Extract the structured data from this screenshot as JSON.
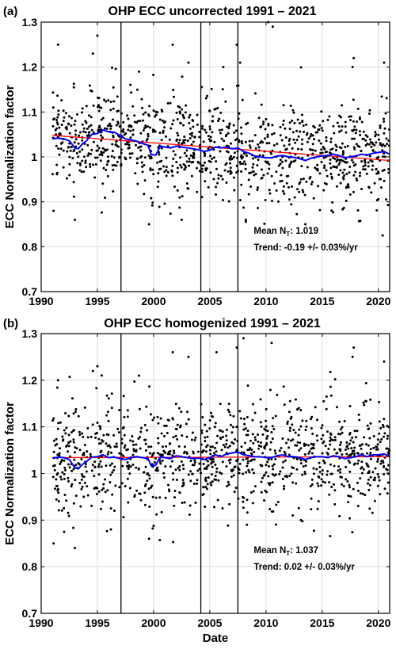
{
  "chart_data": [
    {
      "type": "scatter",
      "panel_label": "(a)",
      "title": "OHP ECC uncorrected 1991 – 2021",
      "xlabel": "",
      "ylabel": "ECC Normalization factor",
      "xlim": [
        1990,
        2021
      ],
      "ylim": [
        0.7,
        1.3
      ],
      "xticks": [
        "1990",
        "1995",
        "2000",
        "2005",
        "2010",
        "2015",
        "2020"
      ],
      "xtick_values": [
        1990,
        1995,
        2000,
        2005,
        2010,
        2015,
        2020
      ],
      "yticks": [
        "0.7",
        "0.8",
        "0.9",
        "1",
        "1.1",
        "1.2",
        "1.3"
      ],
      "ytick_values": [
        0.7,
        0.8,
        0.9,
        1.0,
        1.1,
        1.2,
        1.3
      ],
      "grid": true,
      "vertical_lines": [
        1997.1,
        2004.2,
        2007.5
      ],
      "annotation": {
        "mean_prefix": "Mean N",
        "mean_sub": "T",
        "mean_value": ": 1.019",
        "trend": "Trend: -0.19 +/- 0.03%/yr"
      },
      "trend_line": {
        "color": "#ff0000",
        "x": [
          1991,
          2021
        ],
        "y": [
          1.048,
          0.992
        ]
      },
      "running_mean": {
        "color": "#0000ff",
        "x": [
          1991.0,
          1991.5,
          1992.0,
          1992.5,
          1993.0,
          1993.3,
          1993.7,
          1994.0,
          1994.5,
          1995.0,
          1995.5,
          1996.0,
          1996.5,
          1997.0,
          1997.5,
          1998.0,
          1998.5,
          1999.0,
          1999.5,
          1999.8,
          2000.2,
          2000.6,
          2001.0,
          2001.5,
          2002.0,
          2002.5,
          2003.0,
          2003.5,
          2004.0,
          2004.5,
          2005.0,
          2005.5,
          2006.0,
          2006.5,
          2007.0,
          2007.5,
          2008.0,
          2008.5,
          2009.0,
          2009.5,
          2010.0,
          2010.5,
          2011.0,
          2011.5,
          2012.0,
          2012.5,
          2013.0,
          2013.5,
          2014.0,
          2014.5,
          2015.0,
          2015.5,
          2016.0,
          2016.5,
          2017.0,
          2017.5,
          2018.0,
          2018.5,
          2019.0,
          2019.5,
          2020.0,
          2020.5,
          2021.0
        ],
        "y": [
          1.04,
          1.042,
          1.04,
          1.036,
          1.02,
          1.018,
          1.03,
          1.035,
          1.05,
          1.052,
          1.06,
          1.056,
          1.055,
          1.048,
          1.04,
          1.038,
          1.035,
          1.03,
          1.026,
          1.005,
          1.004,
          1.024,
          1.022,
          1.02,
          1.024,
          1.022,
          1.02,
          1.018,
          1.016,
          1.012,
          1.015,
          1.022,
          1.02,
          1.022,
          1.018,
          1.02,
          1.012,
          1.008,
          1.002,
          1.0,
          0.998,
          0.998,
          1.002,
          1.003,
          1.0,
          0.999,
          0.996,
          0.992,
          0.997,
          1.0,
          1.002,
          1.003,
          1.006,
          1.003,
          0.998,
          1.0,
          1.002,
          1.006,
          1.004,
          1.008,
          1.01,
          1.012,
          1.006
        ]
      },
      "scatter_points": {
        "color": "#000000",
        "seed": 11,
        "n": 1100,
        "x_range": [
          1991.0,
          2021.0
        ],
        "center_trend": {
          "x": [
            1991,
            2021
          ],
          "y": [
            1.048,
            0.992
          ]
        },
        "spread_sd": 0.055,
        "outliers": [
          [
            1991.5,
            1.25
          ],
          [
            1995.0,
            1.27
          ],
          [
            1994.6,
            1.23
          ],
          [
            1998.7,
            1.19
          ],
          [
            2001.7,
            1.25
          ],
          [
            2003.1,
            1.21
          ],
          [
            2006.2,
            1.2
          ],
          [
            2007.4,
            1.25
          ],
          [
            2007.7,
            1.21
          ],
          [
            2010.6,
            1.29
          ],
          [
            2010.2,
            1.3
          ],
          [
            2017.8,
            1.22
          ],
          [
            2017.7,
            1.2
          ],
          [
            2020.5,
            1.21
          ],
          [
            1991.1,
            0.88
          ],
          [
            1993.0,
            0.86
          ],
          [
            1999.6,
            0.85
          ],
          [
            2002.5,
            0.86
          ],
          [
            2013.5,
            0.85
          ],
          [
            2008.2,
            0.86
          ]
        ]
      }
    },
    {
      "type": "scatter",
      "panel_label": "(b)",
      "title": "OHP ECC homogenized 1991 – 2021",
      "xlabel": "Date",
      "ylabel": "ECC Normalization factor",
      "xlim": [
        1990,
        2021
      ],
      "ylim": [
        0.7,
        1.3
      ],
      "xticks": [
        "1990",
        "1995",
        "2000",
        "2005",
        "2010",
        "2015",
        "2020"
      ],
      "xtick_values": [
        1990,
        1995,
        2000,
        2005,
        2010,
        2015,
        2020
      ],
      "yticks": [
        "0.7",
        "0.8",
        "0.9",
        "1",
        "1.1",
        "1.2",
        "1.3"
      ],
      "ytick_values": [
        0.7,
        0.8,
        0.9,
        1.0,
        1.1,
        1.2,
        1.3
      ],
      "grid": true,
      "vertical_lines": [
        1997.1,
        2004.2,
        2007.5
      ],
      "annotation": {
        "mean_prefix": "Mean N",
        "mean_sub": "T",
        "mean_value": ": 1.037",
        "trend": "Trend: 0.02 +/- 0.03%/yr"
      },
      "trend_line": {
        "color": "#ff0000",
        "x": [
          1991,
          2021
        ],
        "y": [
          1.034,
          1.036
        ]
      },
      "running_mean": {
        "color": "#0000ff",
        "x": [
          1991.0,
          1991.5,
          1992.0,
          1992.5,
          1993.0,
          1993.3,
          1993.7,
          1994.0,
          1994.5,
          1995.0,
          1995.5,
          1996.0,
          1996.5,
          1997.0,
          1997.5,
          1998.0,
          1998.5,
          1999.0,
          1999.5,
          1999.8,
          2000.2,
          2000.6,
          2001.0,
          2001.5,
          2002.0,
          2002.5,
          2003.0,
          2003.5,
          2004.0,
          2004.5,
          2005.0,
          2005.5,
          2006.0,
          2006.5,
          2007.0,
          2007.5,
          2008.0,
          2008.5,
          2009.0,
          2009.5,
          2010.0,
          2010.5,
          2011.0,
          2011.5,
          2012.0,
          2012.5,
          2013.0,
          2013.5,
          2014.0,
          2014.5,
          2015.0,
          2015.5,
          2016.0,
          2016.5,
          2017.0,
          2017.5,
          2018.0,
          2018.5,
          2019.0,
          2019.5,
          2020.0,
          2020.5,
          2021.0
        ],
        "y": [
          1.033,
          1.035,
          1.034,
          1.03,
          1.012,
          1.01,
          1.02,
          1.025,
          1.035,
          1.036,
          1.04,
          1.034,
          1.035,
          1.032,
          1.03,
          1.034,
          1.036,
          1.034,
          1.032,
          1.016,
          1.018,
          1.036,
          1.034,
          1.032,
          1.038,
          1.036,
          1.034,
          1.032,
          1.033,
          1.03,
          1.034,
          1.04,
          1.036,
          1.042,
          1.044,
          1.046,
          1.04,
          1.038,
          1.036,
          1.036,
          1.034,
          1.034,
          1.038,
          1.04,
          1.036,
          1.036,
          1.034,
          1.03,
          1.034,
          1.036,
          1.036,
          1.034,
          1.038,
          1.036,
          1.032,
          1.034,
          1.036,
          1.04,
          1.036,
          1.04,
          1.04,
          1.042,
          1.036
        ]
      },
      "scatter_points": {
        "color": "#000000",
        "seed": 23,
        "n": 1100,
        "x_range": [
          1991.0,
          2021.0
        ],
        "center_trend": {
          "x": [
            1991,
            2021
          ],
          "y": [
            1.034,
            1.036
          ]
        },
        "spread_sd": 0.055,
        "outliers": [
          [
            1991.5,
            1.2
          ],
          [
            1995.0,
            1.23
          ],
          [
            1994.6,
            1.22
          ],
          [
            1998.7,
            1.21
          ],
          [
            2001.7,
            1.26
          ],
          [
            2003.1,
            1.25
          ],
          [
            2005.6,
            1.26
          ],
          [
            2007.4,
            1.27
          ],
          [
            2008.0,
            1.29
          ],
          [
            2010.5,
            1.28
          ],
          [
            2017.8,
            1.27
          ],
          [
            2017.7,
            1.25
          ],
          [
            2020.5,
            1.24
          ],
          [
            1991.1,
            0.85
          ],
          [
            1993.0,
            0.84
          ],
          [
            1999.6,
            0.86
          ],
          [
            2013.1,
            0.9
          ],
          [
            2008.3,
            0.89
          ],
          [
            1996.2,
            0.88
          ],
          [
            2018.2,
            0.93
          ]
        ]
      }
    }
  ]
}
